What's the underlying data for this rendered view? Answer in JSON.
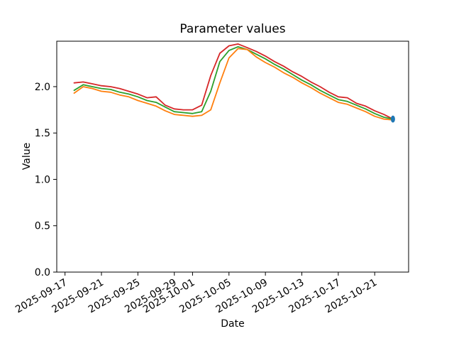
{
  "chart_data": {
    "type": "line",
    "title": "Parameter values",
    "xlabel": "Date",
    "ylabel": "Value",
    "grid": false,
    "legend": "none",
    "background": "#ffffff",
    "axis_color": "#000000",
    "ylim": [
      0,
      2.49
    ],
    "yticks": [
      "0.0",
      "0.5",
      "1.0",
      "1.5",
      "2.0"
    ],
    "xticks": [
      "2025-09-17",
      "2025-09-21",
      "2025-09-25",
      "2025-09-29",
      "2025-10-01",
      "2025-10-05",
      "2025-10-09",
      "2025-10-13",
      "2025-10-17",
      "2025-10-21"
    ],
    "x": [
      "2025-09-18",
      "2025-09-19",
      "2025-09-20",
      "2025-09-21",
      "2025-09-22",
      "2025-09-23",
      "2025-09-24",
      "2025-09-25",
      "2025-09-26",
      "2025-09-27",
      "2025-09-28",
      "2025-09-29",
      "2025-09-30",
      "2025-10-01",
      "2025-10-02",
      "2025-10-03",
      "2025-10-04",
      "2025-10-05",
      "2025-10-06",
      "2025-10-07",
      "2025-10-08",
      "2025-10-09",
      "2025-10-10",
      "2025-10-11",
      "2025-10-12",
      "2025-10-13",
      "2025-10-14",
      "2025-10-15",
      "2025-10-16",
      "2025-10-17",
      "2025-10-18",
      "2025-10-19",
      "2025-10-20",
      "2025-10-21",
      "2025-10-22",
      "2025-10-23"
    ],
    "series": [
      {
        "name": "red",
        "color": "#d62728",
        "values": [
          2.04,
          2.05,
          2.03,
          2.01,
          2.0,
          1.98,
          1.95,
          1.92,
          1.88,
          1.89,
          1.8,
          1.76,
          1.75,
          1.75,
          1.8,
          2.12,
          2.36,
          2.44,
          2.46,
          2.42,
          2.38,
          2.33,
          2.27,
          2.22,
          2.16,
          2.11,
          2.05,
          2.0,
          1.94,
          1.89,
          1.88,
          1.82,
          1.79,
          1.74,
          1.7,
          1.65
        ]
      },
      {
        "name": "green",
        "color": "#2ca02c",
        "values": [
          1.96,
          2.02,
          2.0,
          1.98,
          1.97,
          1.94,
          1.92,
          1.89,
          1.85,
          1.83,
          1.78,
          1.73,
          1.72,
          1.71,
          1.73,
          1.95,
          2.27,
          2.39,
          2.43,
          2.4,
          2.35,
          2.3,
          2.24,
          2.19,
          2.13,
          2.07,
          2.02,
          1.96,
          1.91,
          1.86,
          1.84,
          1.8,
          1.76,
          1.71,
          1.67,
          1.65
        ]
      },
      {
        "name": "orange",
        "color": "#ff7f0e",
        "values": [
          1.93,
          2.0,
          1.98,
          1.95,
          1.94,
          1.91,
          1.89,
          1.85,
          1.82,
          1.79,
          1.74,
          1.7,
          1.69,
          1.68,
          1.69,
          1.75,
          2.04,
          2.31,
          2.41,
          2.4,
          2.32,
          2.26,
          2.21,
          2.15,
          2.1,
          2.04,
          1.99,
          1.93,
          1.88,
          1.83,
          1.81,
          1.77,
          1.73,
          1.68,
          1.65,
          1.64
        ]
      }
    ],
    "end_marker": {
      "date": "2025-10-23",
      "value": 1.65,
      "color": "#1f77b4",
      "shape": "ellipse"
    }
  }
}
